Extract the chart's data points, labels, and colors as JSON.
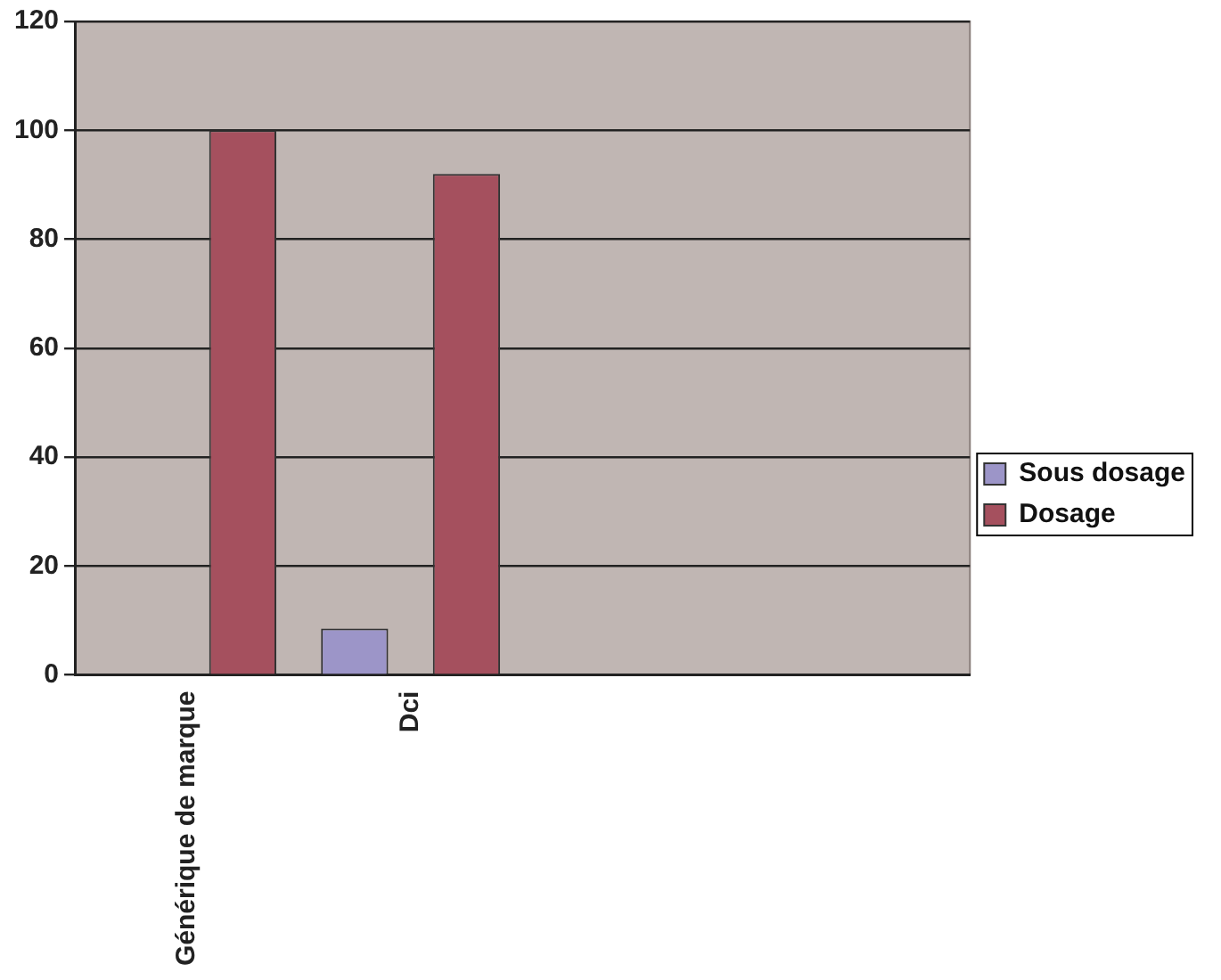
{
  "chart_data": {
    "type": "bar",
    "categories": [
      "Générique de marque",
      "Dci",
      null,
      null
    ],
    "series": [
      {
        "name": "Sous dosage",
        "color": "#9c95c8",
        "values": [
          0,
          8.5,
          null,
          null
        ]
      },
      {
        "name": "Dosage",
        "color": "#a5505e",
        "values": [
          100,
          92,
          null,
          null
        ]
      }
    ],
    "ylim": [
      0,
      120
    ],
    "yticks": [
      0,
      20,
      40,
      60,
      80,
      100,
      120
    ],
    "grid": "y",
    "legend": "right"
  }
}
